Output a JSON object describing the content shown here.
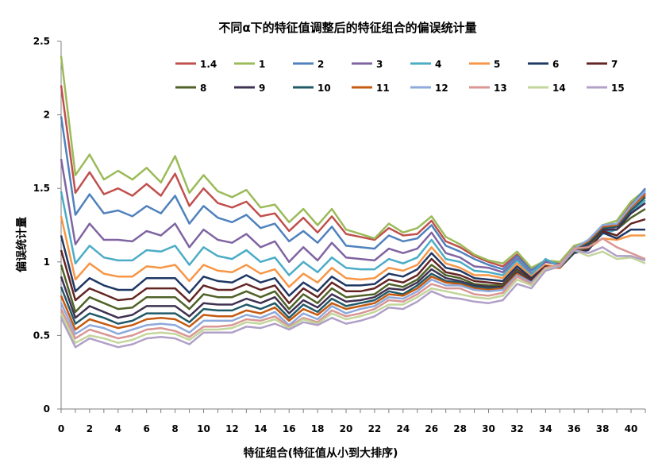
{
  "chart_data": {
    "type": "line",
    "title": "不同α下的特征值调整后的特征组合的偏误统计量",
    "xlabel": "特征组合(特征值从小到大排序)",
    "ylabel": "偏误统计量",
    "xlim": [
      0,
      41
    ],
    "ylim": [
      0,
      2.5
    ],
    "x_ticks": [
      "0",
      "2",
      "4",
      "6",
      "8",
      "10",
      "12",
      "14",
      "16",
      "18",
      "20",
      "22",
      "24",
      "26",
      "28",
      "30",
      "32",
      "34",
      "36",
      "38",
      "40"
    ],
    "y_ticks": [
      "0",
      "0.5",
      "1",
      "1.5",
      "2",
      "2.5"
    ],
    "grid": false,
    "legend_position": "top",
    "series": [
      {
        "name": "1.4",
        "color": "#C0504D",
        "values": [
          2.2,
          1.47,
          1.61,
          1.46,
          1.5,
          1.45,
          1.53,
          1.45,
          1.6,
          1.38,
          1.5,
          1.4,
          1.37,
          1.41,
          1.31,
          1.33,
          1.21,
          1.3,
          1.2,
          1.31,
          1.19,
          1.17,
          1.15,
          1.23,
          1.18,
          1.19,
          1.28,
          1.14,
          1.1,
          1.04,
          1.0,
          0.97,
          1.05,
          0.95,
          1.0,
          0.99,
          1.1,
          1.12,
          1.23,
          1.26,
          1.4,
          1.45
        ]
      },
      {
        "name": "1",
        "color": "#9BBB59",
        "values": [
          2.4,
          1.59,
          1.73,
          1.56,
          1.62,
          1.56,
          1.64,
          1.54,
          1.72,
          1.47,
          1.59,
          1.48,
          1.44,
          1.49,
          1.37,
          1.39,
          1.27,
          1.36,
          1.25,
          1.36,
          1.22,
          1.19,
          1.16,
          1.26,
          1.2,
          1.23,
          1.31,
          1.17,
          1.12,
          1.05,
          1.01,
          0.99,
          1.07,
          0.96,
          1.01,
          1.0,
          1.11,
          1.14,
          1.25,
          1.28,
          1.41,
          1.49
        ]
      },
      {
        "name": "2",
        "color": "#4F81BD",
        "values": [
          1.99,
          1.32,
          1.46,
          1.33,
          1.35,
          1.31,
          1.38,
          1.33,
          1.45,
          1.26,
          1.38,
          1.3,
          1.27,
          1.32,
          1.23,
          1.26,
          1.14,
          1.21,
          1.13,
          1.24,
          1.11,
          1.1,
          1.09,
          1.18,
          1.14,
          1.16,
          1.25,
          1.11,
          1.07,
          1.02,
          0.98,
          0.95,
          1.04,
          0.94,
          1.01,
          0.98,
          1.09,
          1.12,
          1.22,
          1.25,
          1.38,
          1.5
        ]
      },
      {
        "name": "3",
        "color": "#8064A2",
        "values": [
          1.7,
          1.12,
          1.26,
          1.15,
          1.15,
          1.14,
          1.21,
          1.18,
          1.26,
          1.1,
          1.22,
          1.15,
          1.13,
          1.19,
          1.1,
          1.14,
          1.0,
          1.1,
          1.01,
          1.13,
          1.03,
          1.02,
          1.01,
          1.09,
          1.06,
          1.09,
          1.2,
          1.06,
          1.03,
          0.97,
          0.96,
          0.93,
          1.02,
          0.92,
          1.0,
          0.98,
          1.08,
          1.11,
          1.2,
          1.24,
          1.37,
          1.47
        ]
      },
      {
        "name": "4",
        "color": "#4BACC6",
        "values": [
          1.48,
          0.99,
          1.11,
          1.03,
          1.01,
          1.01,
          1.08,
          1.07,
          1.11,
          0.98,
          1.1,
          1.04,
          1.02,
          1.08,
          1.0,
          1.03,
          0.91,
          1.0,
          0.93,
          1.03,
          0.96,
          0.95,
          0.95,
          1.02,
          0.99,
          1.03,
          1.15,
          1.02,
          1.0,
          0.94,
          0.93,
          0.91,
          1.01,
          0.91,
          1.02,
          0.97,
          1.07,
          1.1,
          1.19,
          1.22,
          1.34,
          1.42
        ]
      },
      {
        "name": "5",
        "color": "#F79646",
        "values": [
          1.31,
          0.88,
          0.99,
          0.92,
          0.9,
          0.9,
          0.97,
          0.96,
          0.98,
          0.87,
          0.98,
          0.94,
          0.93,
          0.98,
          0.92,
          0.95,
          0.83,
          0.92,
          0.86,
          0.96,
          0.89,
          0.88,
          0.89,
          0.96,
          0.94,
          0.98,
          1.1,
          0.99,
          0.96,
          0.91,
          0.91,
          0.89,
          0.99,
          0.9,
          0.98,
          0.96,
          1.06,
          1.09,
          1.16,
          1.15,
          1.18,
          1.18
        ]
      },
      {
        "name": "6",
        "color": "#1F3864",
        "values": [
          1.18,
          0.8,
          0.89,
          0.84,
          0.81,
          0.81,
          0.89,
          0.89,
          0.89,
          0.79,
          0.9,
          0.87,
          0.86,
          0.91,
          0.86,
          0.89,
          0.77,
          0.86,
          0.8,
          0.9,
          0.84,
          0.84,
          0.85,
          0.92,
          0.9,
          0.95,
          1.06,
          0.96,
          0.94,
          0.89,
          0.88,
          0.87,
          0.97,
          0.89,
          0.97,
          0.96,
          1.06,
          1.08,
          1.2,
          1.16,
          1.22,
          1.22
        ]
      },
      {
        "name": "7",
        "color": "#632523",
        "values": [
          1.08,
          0.74,
          0.82,
          0.78,
          0.74,
          0.75,
          0.82,
          0.82,
          0.82,
          0.73,
          0.84,
          0.81,
          0.81,
          0.85,
          0.81,
          0.84,
          0.72,
          0.82,
          0.76,
          0.86,
          0.8,
          0.8,
          0.82,
          0.88,
          0.86,
          0.91,
          1.02,
          0.93,
          0.91,
          0.87,
          0.86,
          0.85,
          0.95,
          0.88,
          0.97,
          0.96,
          1.07,
          1.09,
          1.21,
          1.18,
          1.26,
          1.29
        ]
      },
      {
        "name": "8",
        "color": "#4F6228",
        "values": [
          0.98,
          0.66,
          0.76,
          0.72,
          0.68,
          0.69,
          0.76,
          0.76,
          0.76,
          0.68,
          0.78,
          0.76,
          0.76,
          0.8,
          0.76,
          0.8,
          0.68,
          0.78,
          0.72,
          0.82,
          0.76,
          0.77,
          0.78,
          0.85,
          0.83,
          0.88,
          0.98,
          0.91,
          0.89,
          0.85,
          0.84,
          0.84,
          0.94,
          0.87,
          0.96,
          0.96,
          1.07,
          1.1,
          1.22,
          1.22,
          1.3,
          1.36
        ]
      },
      {
        "name": "9",
        "color": "#3F3151",
        "values": [
          0.9,
          0.62,
          0.7,
          0.66,
          0.62,
          0.64,
          0.7,
          0.7,
          0.7,
          0.63,
          0.72,
          0.71,
          0.71,
          0.75,
          0.72,
          0.76,
          0.65,
          0.74,
          0.69,
          0.78,
          0.73,
          0.74,
          0.76,
          0.82,
          0.81,
          0.86,
          0.95,
          0.89,
          0.87,
          0.84,
          0.83,
          0.83,
          0.93,
          0.87,
          0.96,
          0.96,
          1.08,
          1.12,
          1.22,
          1.22,
          1.33,
          1.4
        ]
      },
      {
        "name": "10",
        "color": "#215968",
        "values": [
          0.83,
          0.58,
          0.65,
          0.62,
          0.58,
          0.6,
          0.65,
          0.65,
          0.65,
          0.59,
          0.68,
          0.67,
          0.67,
          0.71,
          0.68,
          0.72,
          0.62,
          0.71,
          0.66,
          0.75,
          0.7,
          0.72,
          0.74,
          0.8,
          0.78,
          0.84,
          0.92,
          0.87,
          0.86,
          0.83,
          0.82,
          0.82,
          0.92,
          0.86,
          0.96,
          0.96,
          1.08,
          1.13,
          1.23,
          1.24,
          1.35,
          1.44
        ]
      },
      {
        "name": "11",
        "color": "#C55A11",
        "values": [
          0.77,
          0.54,
          0.61,
          0.58,
          0.55,
          0.57,
          0.61,
          0.62,
          0.61,
          0.56,
          0.64,
          0.63,
          0.63,
          0.67,
          0.65,
          0.69,
          0.6,
          0.68,
          0.64,
          0.72,
          0.68,
          0.7,
          0.72,
          0.78,
          0.77,
          0.82,
          0.9,
          0.86,
          0.85,
          0.82,
          0.81,
          0.82,
          0.92,
          0.86,
          0.96,
          0.96,
          1.09,
          1.14,
          1.24,
          1.25,
          1.37,
          1.46
        ]
      },
      {
        "name": "12",
        "color": "#8EA9DB",
        "values": [
          0.72,
          0.51,
          0.57,
          0.55,
          0.51,
          0.54,
          0.57,
          0.58,
          0.57,
          0.52,
          0.6,
          0.6,
          0.6,
          0.64,
          0.62,
          0.66,
          0.57,
          0.65,
          0.61,
          0.7,
          0.65,
          0.68,
          0.7,
          0.76,
          0.75,
          0.8,
          0.88,
          0.84,
          0.84,
          0.81,
          0.8,
          0.81,
          0.91,
          0.86,
          0.96,
          0.97,
          1.09,
          1.15,
          1.25,
          1.26,
          1.38,
          1.48
        ]
      },
      {
        "name": "13",
        "color": "#D99694",
        "values": [
          0.68,
          0.48,
          0.54,
          0.51,
          0.48,
          0.5,
          0.54,
          0.55,
          0.53,
          0.49,
          0.56,
          0.56,
          0.57,
          0.61,
          0.6,
          0.63,
          0.56,
          0.62,
          0.59,
          0.67,
          0.63,
          0.65,
          0.68,
          0.74,
          0.73,
          0.78,
          0.85,
          0.82,
          0.82,
          0.78,
          0.77,
          0.79,
          0.9,
          0.85,
          0.96,
          0.98,
          1.09,
          1.1,
          1.16,
          1.1,
          1.06,
          1.02
        ]
      },
      {
        "name": "14",
        "color": "#C3D69B",
        "values": [
          0.65,
          0.45,
          0.5,
          0.48,
          0.45,
          0.47,
          0.51,
          0.52,
          0.51,
          0.47,
          0.54,
          0.54,
          0.55,
          0.59,
          0.58,
          0.61,
          0.55,
          0.61,
          0.58,
          0.65,
          0.61,
          0.63,
          0.66,
          0.71,
          0.71,
          0.76,
          0.82,
          0.8,
          0.78,
          0.76,
          0.75,
          0.77,
          0.88,
          0.84,
          0.95,
          0.97,
          1.08,
          1.04,
          1.07,
          1.02,
          1.03,
          0.99
        ]
      },
      {
        "name": "15",
        "color": "#B1A0C7",
        "values": [
          0.62,
          0.42,
          0.48,
          0.45,
          0.42,
          0.44,
          0.48,
          0.49,
          0.48,
          0.44,
          0.52,
          0.52,
          0.52,
          0.56,
          0.55,
          0.58,
          0.54,
          0.59,
          0.57,
          0.62,
          0.58,
          0.6,
          0.63,
          0.69,
          0.68,
          0.73,
          0.8,
          0.76,
          0.75,
          0.73,
          0.72,
          0.74,
          0.85,
          0.82,
          0.94,
          0.97,
          1.08,
          1.06,
          1.1,
          1.04,
          1.04,
          1.01
        ]
      }
    ]
  }
}
